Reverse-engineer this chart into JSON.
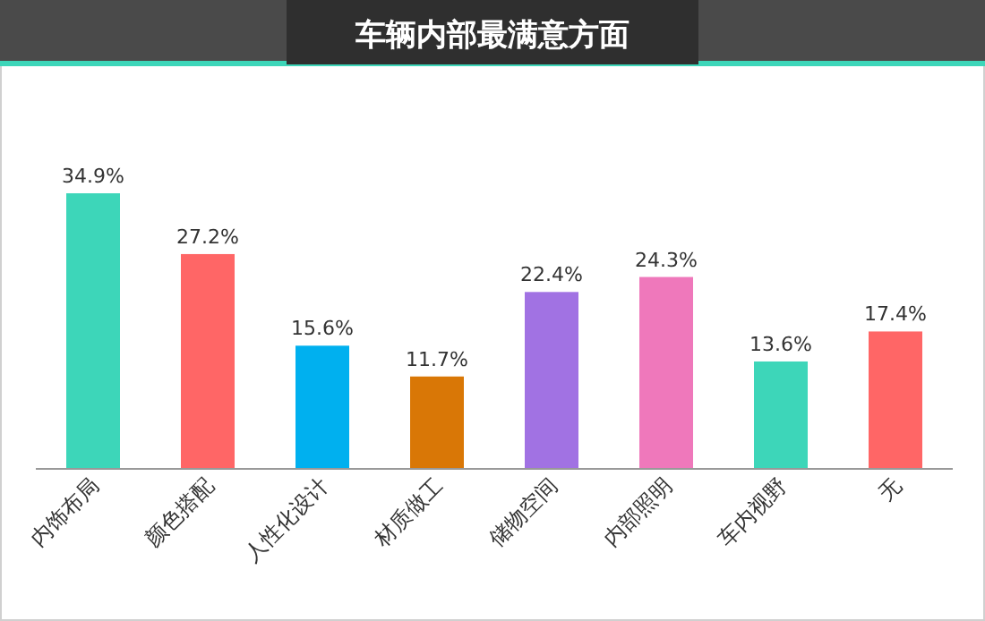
{
  "chart_data": {
    "type": "bar",
    "title": "车辆内部最满意方面",
    "categories": [
      "内饰布局",
      "颜色搭配",
      "人性化设计",
      "材质做工",
      "储物空间",
      "内部照明",
      "车内视野",
      "无"
    ],
    "values": [
      34.9,
      27.2,
      15.6,
      11.7,
      22.4,
      24.3,
      13.6,
      17.4
    ],
    "value_labels": [
      "34.9%",
      "27.2%",
      "15.6%",
      "11.7%",
      "22.4%",
      "24.3%",
      "13.6%",
      "17.4%"
    ],
    "colors": [
      "#3dd6b9",
      "#ff6666",
      "#00b0ef",
      "#d97706",
      "#a172e3",
      "#ef78bb",
      "#3dd6b9",
      "#ff6666"
    ]
  }
}
